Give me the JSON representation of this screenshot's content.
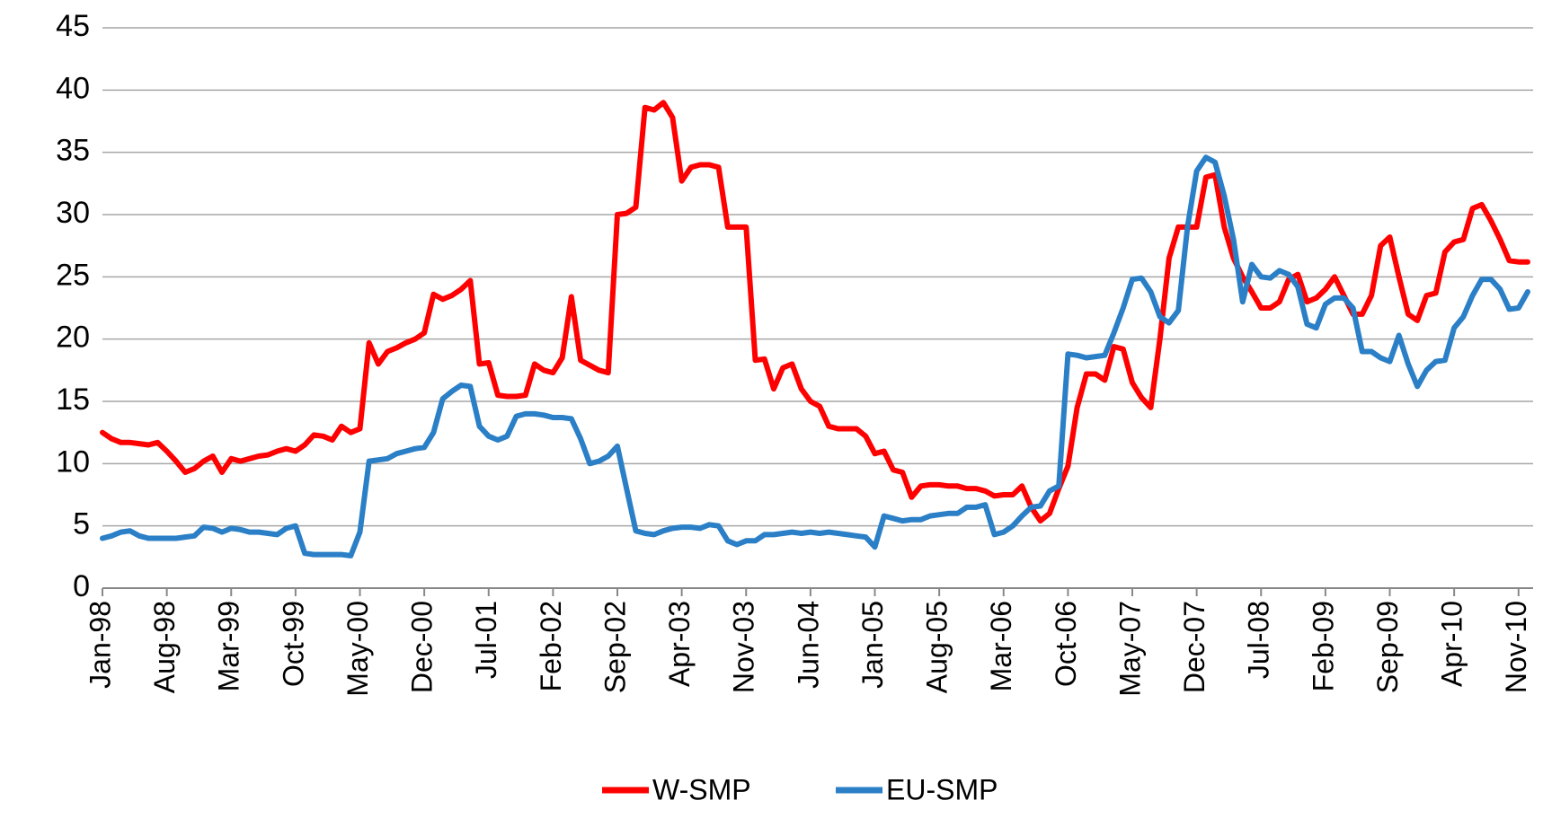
{
  "chart_data": {
    "type": "line",
    "categories": [
      "Jan-98",
      null,
      null,
      null,
      null,
      null,
      null,
      "Aug-98",
      null,
      null,
      null,
      null,
      null,
      null,
      "Mar-99",
      null,
      null,
      null,
      null,
      null,
      null,
      "Oct-99",
      null,
      null,
      null,
      null,
      null,
      null,
      "May-00",
      null,
      null,
      null,
      null,
      null,
      null,
      "Dec-00",
      null,
      null,
      null,
      null,
      null,
      null,
      "Jul-01",
      null,
      null,
      null,
      null,
      null,
      null,
      "Feb-02",
      null,
      null,
      null,
      null,
      null,
      null,
      "Sep-02",
      null,
      null,
      null,
      null,
      null,
      null,
      "Apr-03",
      null,
      null,
      null,
      null,
      null,
      null,
      "Nov-03",
      null,
      null,
      null,
      null,
      null,
      null,
      "Jun-04",
      null,
      null,
      null,
      null,
      null,
      null,
      "Jan-05",
      null,
      null,
      null,
      null,
      null,
      null,
      "Aug-05",
      null,
      null,
      null,
      null,
      null,
      null,
      "Mar-06",
      null,
      null,
      null,
      null,
      null,
      null,
      "Oct-06",
      null,
      null,
      null,
      null,
      null,
      null,
      "May-07",
      null,
      null,
      null,
      null,
      null,
      null,
      "Dec-07",
      null,
      null,
      null,
      null,
      null,
      null,
      "Jul-08",
      null,
      null,
      null,
      null,
      null,
      null,
      "Feb-09",
      null,
      null,
      null,
      null,
      null,
      null,
      "Sep-09",
      null,
      null,
      null,
      null,
      null,
      null,
      "Apr-10",
      null,
      null,
      null,
      null,
      null,
      null,
      "Nov-10",
      null
    ],
    "series": [
      {
        "name": "W-SMP",
        "color": "#ff0000",
        "values": [
          12.5,
          12,
          11.7,
          11.7,
          11.6,
          11.5,
          11.7,
          11,
          10.2,
          9.3,
          9.6,
          10.2,
          10.6,
          9.3,
          10.4,
          10.2,
          10.4,
          10.6,
          10.7,
          11,
          11.2,
          11,
          11.5,
          12.3,
          12.2,
          11.9,
          13,
          12.5,
          12.8,
          19.7,
          18,
          19,
          19.3,
          19.7,
          20,
          20.5,
          23.6,
          23.2,
          23.5,
          24,
          24.7,
          18,
          18.1,
          15.5,
          15.4,
          15.4,
          15.5,
          18,
          17.5,
          17.3,
          18.5,
          23.4,
          18.3,
          17.9,
          17.5,
          17.3,
          30,
          30.1,
          30.6,
          38.6,
          38.4,
          39,
          37.8,
          32.7,
          33.8,
          34,
          34,
          33.8,
          29,
          29,
          29,
          18.3,
          18.4,
          16,
          17.7,
          18,
          16,
          15,
          14.6,
          13,
          12.8,
          12.8,
          12.8,
          12.2,
          10.8,
          11,
          9.5,
          9.3,
          7.3,
          8.2,
          8.3,
          8.3,
          8.2,
          8.2,
          8,
          8,
          7.8,
          7.4,
          7.5,
          7.5,
          8.2,
          6.5,
          5.4,
          6,
          8,
          9.8,
          14.5,
          17.2,
          17.2,
          16.7,
          19.4,
          19.2,
          16.5,
          15.3,
          14.5,
          20,
          26.5,
          29,
          29,
          29,
          33,
          33.2,
          29,
          26.5,
          25,
          23.8,
          22.5,
          22.5,
          23,
          24.8,
          25.2,
          23,
          23.3,
          24,
          25,
          23.5,
          22,
          22,
          23.5,
          27.5,
          28.2,
          25,
          22,
          21.5,
          23.5,
          23.7,
          27,
          27.8,
          28,
          30.5,
          30.8,
          29.5,
          28,
          26.3,
          26.2,
          26.2
        ]
      },
      {
        "name": "EU-SMP",
        "color": "#2a7fc6",
        "values": [
          4,
          4.2,
          4.5,
          4.6,
          4.2,
          4,
          4,
          4,
          4,
          4.1,
          4.2,
          4.9,
          4.8,
          4.5,
          4.8,
          4.7,
          4.5,
          4.5,
          4.4,
          4.3,
          4.8,
          5,
          2.8,
          2.7,
          2.7,
          2.7,
          2.7,
          2.6,
          4.5,
          10.2,
          10.3,
          10.4,
          10.8,
          11,
          11.2,
          11.3,
          12.5,
          15.2,
          15.8,
          16.3,
          16.2,
          13,
          12.2,
          11.9,
          12.2,
          13.8,
          14,
          14,
          13.9,
          13.7,
          13.7,
          13.6,
          12,
          10,
          10.2,
          10.6,
          11.4,
          8,
          4.6,
          4.4,
          4.3,
          4.6,
          4.8,
          4.9,
          4.9,
          4.8,
          5.1,
          5,
          3.8,
          3.5,
          3.8,
          3.8,
          4.3,
          4.3,
          4.4,
          4.5,
          4.4,
          4.5,
          4.4,
          4.5,
          4.4,
          4.3,
          4.2,
          4.1,
          3.3,
          5.8,
          5.6,
          5.4,
          5.5,
          5.5,
          5.8,
          5.9,
          6,
          6,
          6.5,
          6.5,
          6.7,
          4.3,
          4.5,
          5,
          5.8,
          6.5,
          6.6,
          7.8,
          8.2,
          18.8,
          18.7,
          18.5,
          18.6,
          18.7,
          20.5,
          22.5,
          24.8,
          24.9,
          23.8,
          21.8,
          21.3,
          22.3,
          29,
          33.5,
          34.6,
          34.2,
          31.5,
          28,
          23,
          26,
          25,
          24.9,
          25.5,
          25.2,
          24.2,
          21.2,
          20.9,
          22.8,
          23.3,
          23.3,
          22.5,
          19,
          19,
          18.5,
          18.2,
          20.3,
          18,
          16.2,
          17.5,
          18.2,
          18.3,
          20.9,
          21.8,
          23.5,
          24.8,
          24.8,
          24,
          22.4,
          22.5,
          23.8
        ]
      }
    ],
    "ylim": [
      0,
      45
    ],
    "yticks": [
      0,
      5,
      10,
      15,
      20,
      25,
      30,
      35,
      40,
      45
    ],
    "grid": true,
    "legend": "bottom"
  }
}
